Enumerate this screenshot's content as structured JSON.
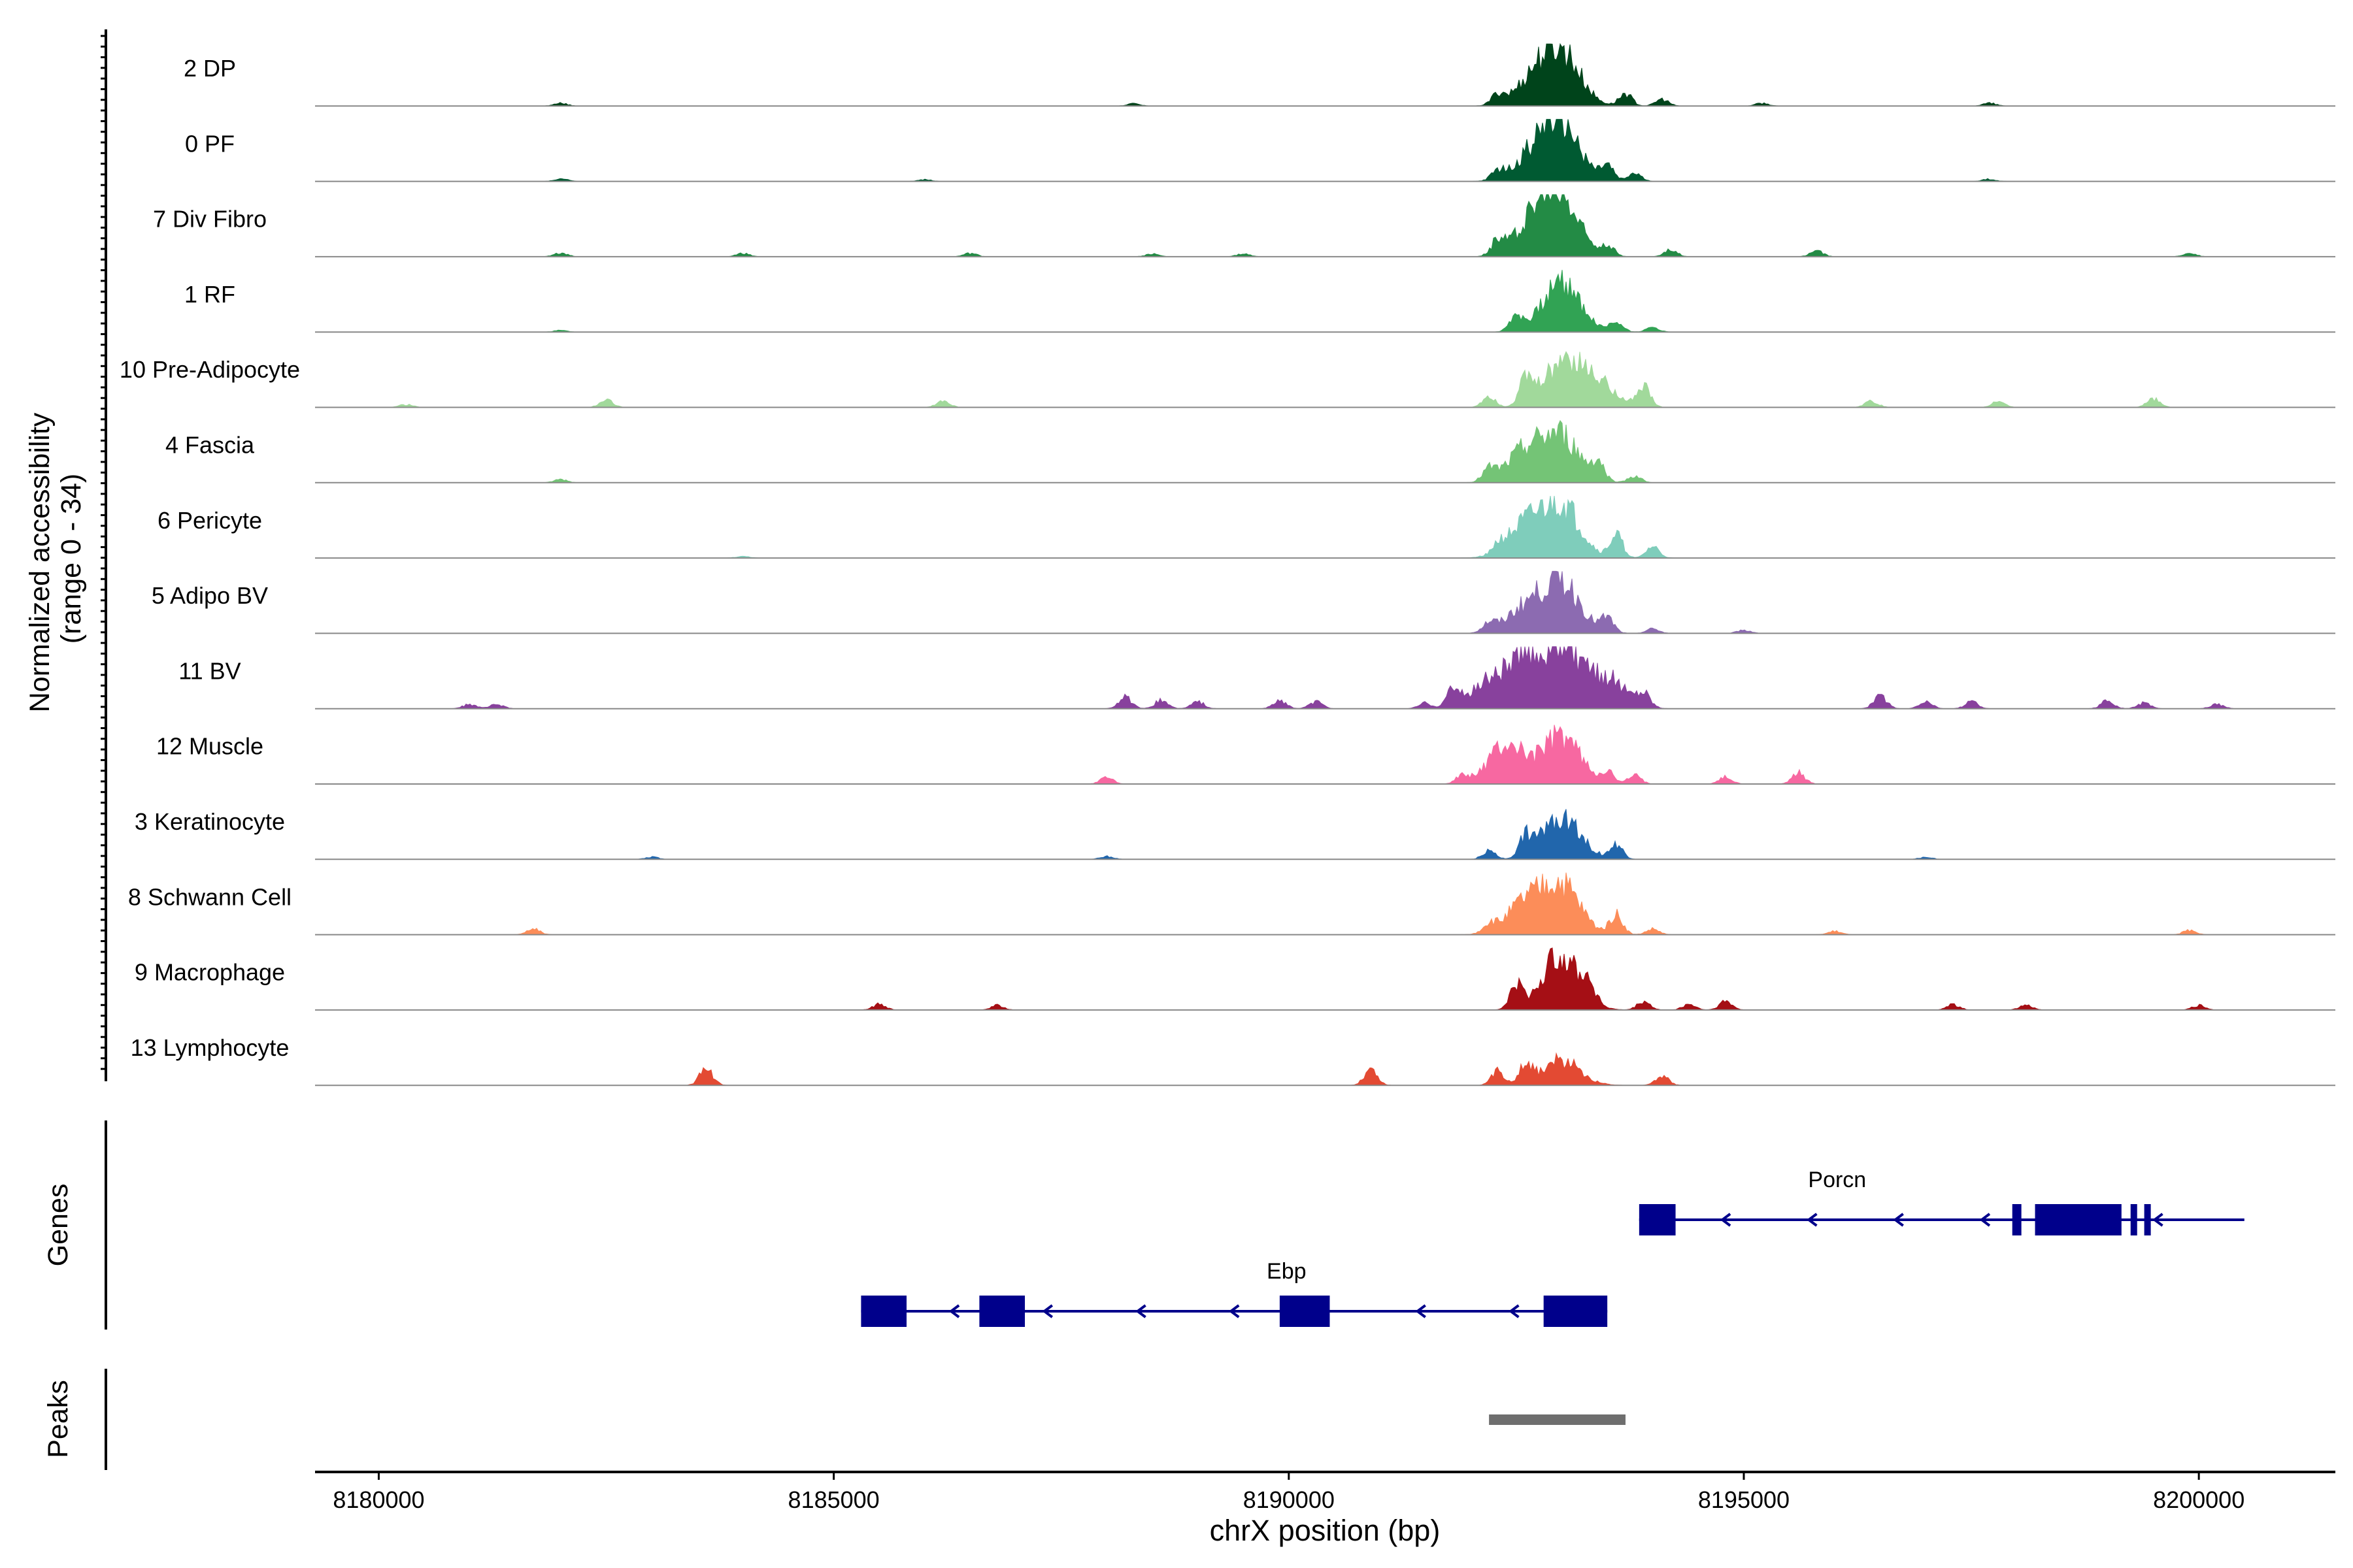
{
  "chart_data": {
    "type": "area",
    "ylabel": [
      "Normalized accessibility",
      "(range 0 - 34)"
    ],
    "xlabel": "chrX position (bp)",
    "xlim": [
      8179300,
      8201500
    ],
    "xticks": [
      8180000,
      8185000,
      8190000,
      8195000,
      8200000
    ],
    "xtick_labels": [
      "8180000",
      "8185000",
      "8190000",
      "8195000",
      "8200000"
    ],
    "ylim": [
      0,
      34
    ],
    "tracks": [
      {
        "name": "2 DP",
        "color": "#00441b",
        "peaks": [
          [
            8193000,
            90
          ],
          [
            8192700,
            45
          ],
          [
            8192300,
            18
          ],
          [
            8193700,
            22
          ],
          [
            8194100,
            12
          ],
          [
            8195200,
            5
          ],
          [
            8197700,
            5
          ],
          [
            8182000,
            5
          ],
          [
            8188300,
            4
          ]
        ]
      },
      {
        "name": "0 PF",
        "color": "#005a32",
        "peaks": [
          [
            8193000,
            95
          ],
          [
            8192700,
            45
          ],
          [
            8192300,
            15
          ],
          [
            8193500,
            25
          ],
          [
            8193800,
            14
          ],
          [
            8182000,
            5
          ],
          [
            8186000,
            3
          ],
          [
            8197700,
            4
          ]
        ]
      },
      {
        "name": "7 Div Fibro",
        "color": "#238b45",
        "peaks": [
          [
            8193000,
            95
          ],
          [
            8192700,
            65
          ],
          [
            8192300,
            25
          ],
          [
            8193500,
            20
          ],
          [
            8194200,
            12
          ],
          [
            8195800,
            10
          ],
          [
            8182000,
            7
          ],
          [
            8184000,
            6
          ],
          [
            8186500,
            6
          ],
          [
            8188500,
            5
          ],
          [
            8189500,
            5
          ],
          [
            8199900,
            6
          ]
        ]
      },
      {
        "name": "1 RF",
        "color": "#31a354",
        "peaks": [
          [
            8193000,
            90
          ],
          [
            8192500,
            30
          ],
          [
            8193600,
            18
          ],
          [
            8194000,
            8
          ],
          [
            8182000,
            3
          ]
        ]
      },
      {
        "name": "10 Pre-Adipocyte",
        "color": "#a1d99b",
        "peaks": [
          [
            8193000,
            80
          ],
          [
            8192600,
            40
          ],
          [
            8193400,
            42
          ],
          [
            8193900,
            35
          ],
          [
            8192200,
            20
          ],
          [
            8196400,
            12
          ],
          [
            8197800,
            10
          ],
          [
            8199500,
            15
          ],
          [
            8182500,
            14
          ],
          [
            8186200,
            12
          ],
          [
            8180300,
            5
          ]
        ]
      },
      {
        "name": "4 Fascia",
        "color": "#74c476",
        "peaks": [
          [
            8193000,
            80
          ],
          [
            8192600,
            55
          ],
          [
            8193400,
            30
          ],
          [
            8192200,
            20
          ],
          [
            8193800,
            12
          ],
          [
            8182000,
            6
          ]
        ]
      },
      {
        "name": "6 Pericyte",
        "color": "#7fcdbb",
        "peaks": [
          [
            8193000,
            90
          ],
          [
            8192600,
            55
          ],
          [
            8193600,
            40
          ],
          [
            8194000,
            20
          ],
          [
            8192300,
            12
          ],
          [
            8184000,
            3
          ]
        ]
      },
      {
        "name": "5 Adipo BV",
        "color": "#8c6bb1",
        "peaks": [
          [
            8193000,
            90
          ],
          [
            8192600,
            45
          ],
          [
            8193500,
            25
          ],
          [
            8192200,
            15
          ],
          [
            8194000,
            8
          ],
          [
            8195000,
            6
          ]
        ]
      },
      {
        "name": "11 BV",
        "color": "#88419d",
        "peaks": [
          [
            8193000,
            100
          ],
          [
            8192600,
            75
          ],
          [
            8192200,
            45
          ],
          [
            8193500,
            55
          ],
          [
            8193900,
            25
          ],
          [
            8191800,
            30
          ],
          [
            8188200,
            20
          ],
          [
            8188600,
            15
          ],
          [
            8189000,
            12
          ],
          [
            8189900,
            14
          ],
          [
            8190300,
            12
          ],
          [
            8191500,
            10
          ],
          [
            8196500,
            22
          ],
          [
            8197000,
            12
          ],
          [
            8197500,
            12
          ],
          [
            8199000,
            14
          ],
          [
            8199400,
            10
          ],
          [
            8181000,
            8
          ],
          [
            8181300,
            8
          ],
          [
            8200200,
            8
          ]
        ]
      },
      {
        "name": "12 Muscle",
        "color": "#f768a1",
        "peaks": [
          [
            8193000,
            85
          ],
          [
            8192400,
            70
          ],
          [
            8193500,
            20
          ],
          [
            8193800,
            15
          ],
          [
            8191900,
            12
          ],
          [
            8195600,
            20
          ],
          [
            8194800,
            12
          ],
          [
            8188000,
            12
          ]
        ]
      },
      {
        "name": "3 Keratinocyte",
        "color": "#2166ac",
        "peaks": [
          [
            8193000,
            80
          ],
          [
            8192600,
            35
          ],
          [
            8193600,
            25
          ],
          [
            8192200,
            15
          ],
          [
            8188000,
            5
          ],
          [
            8183000,
            4
          ],
          [
            8197000,
            4
          ]
        ]
      },
      {
        "name": "8 Schwann Cell",
        "color": "#fc8d59",
        "peaks": [
          [
            8193000,
            85
          ],
          [
            8192600,
            55
          ],
          [
            8193600,
            35
          ],
          [
            8192200,
            15
          ],
          [
            8194000,
            10
          ],
          [
            8181700,
            10
          ],
          [
            8196000,
            6
          ],
          [
            8199900,
            8
          ]
        ]
      },
      {
        "name": "9 Macrophage",
        "color": "#a50f15",
        "peaks": [
          [
            8193000,
            100
          ],
          [
            8192500,
            40
          ],
          [
            8193300,
            25
          ],
          [
            8193900,
            15
          ],
          [
            8194400,
            10
          ],
          [
            8194800,
            15
          ],
          [
            8185500,
            10
          ],
          [
            8186800,
            8
          ],
          [
            8197300,
            10
          ],
          [
            8198100,
            8
          ],
          [
            8200000,
            8
          ]
        ]
      },
      {
        "name": "13 Lymphocyte",
        "color": "#e34a33",
        "peaks": [
          [
            8183600,
            30
          ],
          [
            8190900,
            28
          ],
          [
            8193000,
            45
          ],
          [
            8192600,
            35
          ],
          [
            8192300,
            25
          ],
          [
            8194100,
            18
          ]
        ]
      }
    ],
    "genes": [
      {
        "name": "Porcn",
        "start": 8193850,
        "end": 8200500,
        "strand": "-",
        "exons": [
          [
            8193850,
            8194250
          ],
          [
            8197950,
            8198050
          ],
          [
            8198200,
            8199150
          ],
          [
            8199250,
            8199300
          ],
          [
            8199400,
            8199450
          ]
        ]
      },
      {
        "name": "Ebp",
        "start": 8185300,
        "end": 8193500,
        "strand": "-",
        "exons": [
          [
            8185300,
            8185800
          ],
          [
            8186600,
            8187100
          ],
          [
            8189900,
            8190450
          ],
          [
            8192800,
            8193500
          ]
        ]
      }
    ],
    "peaks_region": [
      [
        8192200,
        8193700
      ]
    ],
    "gene_color": "#00008b",
    "peak_color": "#6e6e6e",
    "panel_labels": {
      "genes": "Genes",
      "peaks": "Peaks"
    }
  }
}
